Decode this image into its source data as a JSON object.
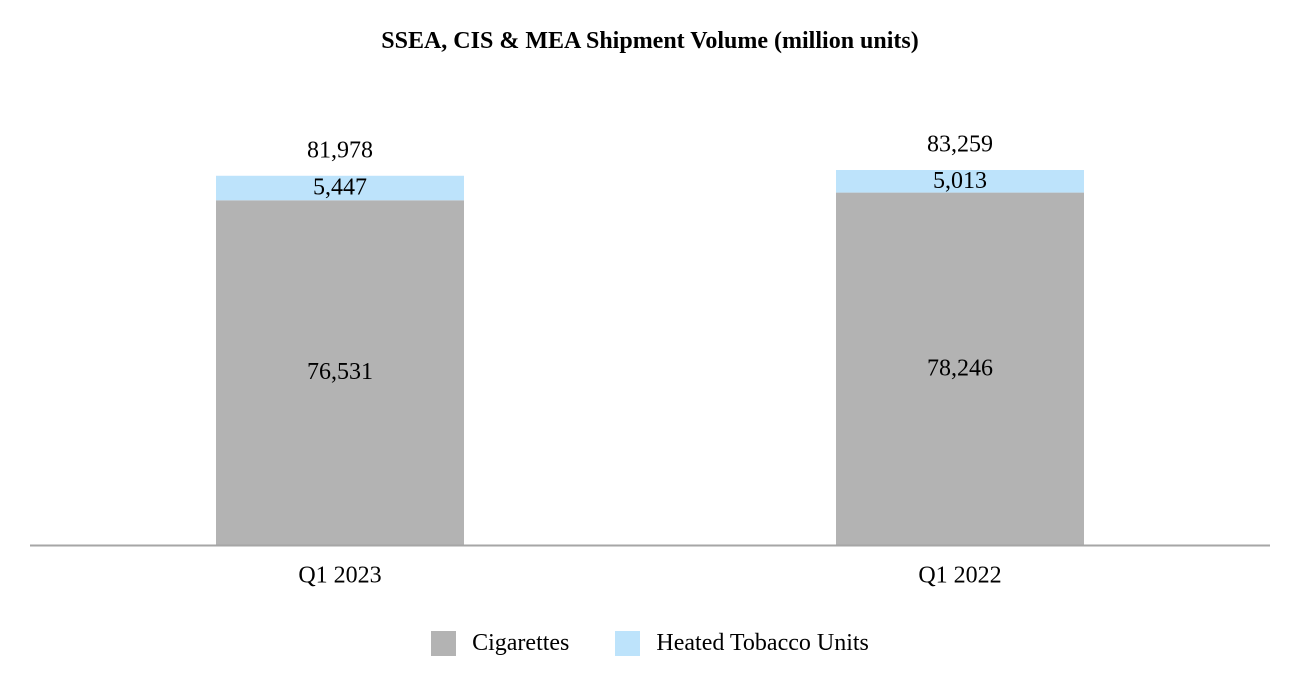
{
  "colors": {
    "cigarettes": "#b3b3b3",
    "heated_tobacco_units": "#bde3fb",
    "axis": "#a6a6a6",
    "text": "#000000"
  },
  "chart_data": {
    "type": "bar",
    "stacked": true,
    "title": "SSEA, CIS & MEA Shipment Volume (million units)",
    "xlabel": "",
    "ylabel": "",
    "categories": [
      "Q1 2023",
      "Q1 2022"
    ],
    "series": [
      {
        "name": "Cigarettes",
        "values": [
          76531,
          78246
        ],
        "labels": [
          "76,531",
          "78,246"
        ],
        "color": "#b3b3b3"
      },
      {
        "name": "Heated Tobacco Units",
        "values": [
          5447,
          5013
        ],
        "labels": [
          "5,447",
          "5,013"
        ],
        "color": "#bde3fb"
      }
    ],
    "totals": [
      81978,
      83259
    ],
    "total_labels": [
      "81,978",
      "83,259"
    ],
    "ylim": [
      0,
      83259
    ],
    "grid": false,
    "y_axis_visible": false,
    "legend": "bottom"
  }
}
